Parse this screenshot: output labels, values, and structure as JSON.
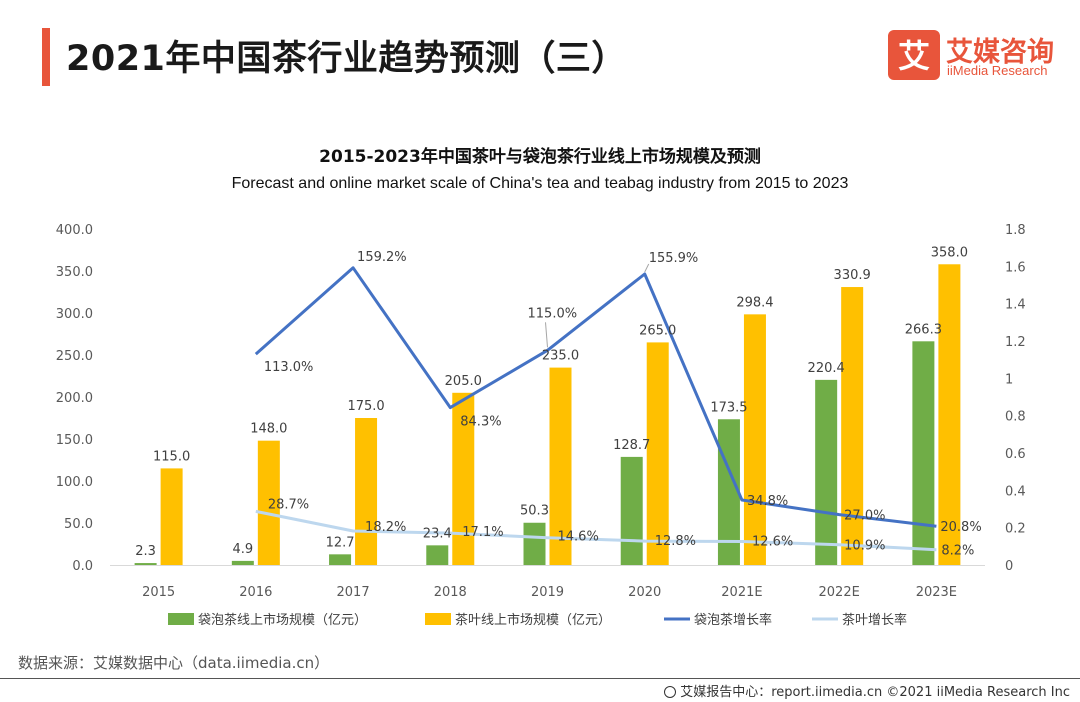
{
  "header": {
    "title": "2021年中国茶行业趋势预测（三）",
    "logo_cn": "艾媒咨询",
    "logo_en": "iiMedia Research",
    "logo_mark": "艾"
  },
  "colors": {
    "accent": "#e8553b",
    "teabag_bar": "#70ad47",
    "tea_bar": "#ffc000",
    "teabag_line": "#4472c4",
    "tea_line": "#bdd7ee"
  },
  "chart_data": {
    "type": "bar",
    "title": "2015-2023年中国茶叶与袋泡茶行业线上市场规模及预测",
    "subtitle": "Forecast and online market scale of China's tea and teabag industry from 2015 to 2023",
    "categories": [
      "2015",
      "2016",
      "2017",
      "2018",
      "2019",
      "2020",
      "2021E",
      "2022E",
      "2023E"
    ],
    "y_left": {
      "min": 0,
      "max": 400,
      "ticks": [
        "0.0",
        "50.0",
        "100.0",
        "150.0",
        "200.0",
        "250.0",
        "300.0",
        "350.0",
        "400.0"
      ]
    },
    "y_right": {
      "min": 0,
      "max": 1.8,
      "ticks": [
        "0",
        "0.2",
        "0.4",
        "0.6",
        "0.8",
        "1",
        "1.2",
        "1.4",
        "1.6",
        "1.8"
      ]
    },
    "series": [
      {
        "name": "袋泡茶线上市场规模（亿元）",
        "type": "bar",
        "axis": "left",
        "values": [
          2.3,
          4.9,
          12.7,
          23.4,
          50.3,
          128.7,
          173.5,
          220.4,
          266.3
        ],
        "labels": [
          "2.3",
          "4.9",
          "12.7",
          "23.4",
          "50.3",
          "128.7",
          "173.5",
          "220.4",
          "266.3"
        ]
      },
      {
        "name": "茶叶线上市场规模（亿元）",
        "type": "bar",
        "axis": "left",
        "values": [
          115.0,
          148.0,
          175.0,
          205.0,
          235.0,
          265.0,
          298.4,
          330.9,
          358.0
        ],
        "labels": [
          "115.0",
          "148.0",
          "175.0",
          "205.0",
          "235.0",
          "265.0",
          "298.4",
          "330.9",
          "358.0"
        ]
      },
      {
        "name": "袋泡茶增长率",
        "type": "line",
        "axis": "right",
        "values": [
          null,
          1.13,
          1.592,
          0.843,
          1.15,
          1.559,
          0.348,
          0.27,
          0.208
        ],
        "labels": [
          null,
          "113.0%",
          "159.2%",
          "84.3%",
          "115.0%",
          "155.9%",
          "34.8%",
          "27.0%",
          "20.8%"
        ]
      },
      {
        "name": "茶叶增长率",
        "type": "line",
        "axis": "right",
        "values": [
          null,
          0.287,
          0.182,
          0.171,
          0.146,
          0.128,
          0.126,
          0.109,
          0.082
        ],
        "labels": [
          null,
          "28.7%",
          "18.2%",
          "17.1%",
          "14.6%",
          "12.8%",
          "12.6%",
          "10.9%",
          "8.2%"
        ]
      }
    ],
    "legend": "bottom"
  },
  "footer": {
    "source": "数据来源：艾媒数据中心（data.iimedia.cn）",
    "credit": "艾媒报告中心：report.iimedia.cn   ©2021  iiMedia Research  Inc"
  }
}
